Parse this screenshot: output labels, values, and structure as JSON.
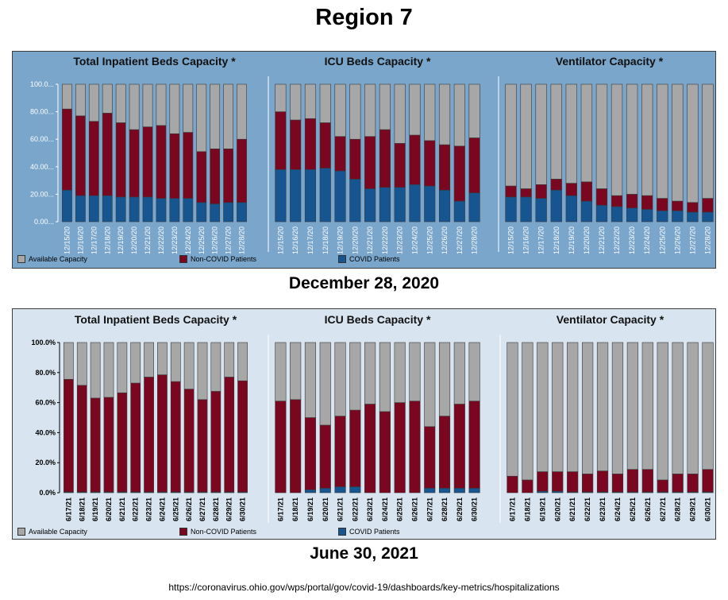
{
  "page": {
    "title": "Region 7",
    "source": "https://coronavirus.ohio.gov/wps/portal/gov/covid-19/dashboards/key-metrics/hospitalizations"
  },
  "legend": {
    "available": "Available Capacity",
    "non_covid": "Non-COVID Patients",
    "covid": "COVID Patients"
  },
  "colors": {
    "available": "#a7a7a7",
    "non_covid": "#7a0620",
    "covid": "#175591",
    "panel_top_bg": "#7aa6cc",
    "panel_bottom_bg": "#d8e4ef"
  },
  "panels": [
    {
      "caption": "December 28, 2020",
      "y_ticks": [
        "100.0...",
        "80.00...",
        "60.00...",
        "40.00...",
        "20.00...",
        "0.00..."
      ],
      "dates": [
        "12/15/20",
        "12/16/20",
        "12/17/20",
        "12/18/20",
        "12/19/20",
        "12/20/20",
        "12/21/20",
        "12/22/20",
        "12/23/20",
        "12/24/20",
        "12/25/20",
        "12/26/20",
        "12/27/20",
        "12/28/20"
      ]
    },
    {
      "caption": "June 30, 2021",
      "y_ticks": [
        "100.0%",
        "80.0%",
        "60.0%",
        "40.0%",
        "20.0%",
        "0.0%"
      ],
      "dates": [
        "6/17/21",
        "6/18/21",
        "6/19/21",
        "6/20/21",
        "6/21/21",
        "6/22/21",
        "6/23/21",
        "6/24/21",
        "6/25/21",
        "6/26/21",
        "6/27/21",
        "6/28/21",
        "6/29/21",
        "6/30/21"
      ]
    }
  ],
  "chart_data": [
    {
      "type": "bar",
      "stacked": true,
      "title": "Total Inpatient Beds Capacity *",
      "period": "December 28, 2020",
      "categories": [
        "12/15/20",
        "12/16/20",
        "12/17/20",
        "12/18/20",
        "12/19/20",
        "12/20/20",
        "12/21/20",
        "12/22/20",
        "12/23/20",
        "12/24/20",
        "12/25/20",
        "12/26/20",
        "12/27/20",
        "12/28/20"
      ],
      "ylim": [
        0,
        100
      ],
      "series": [
        {
          "name": "COVID Patients",
          "values": [
            23,
            19,
            19,
            19,
            18,
            18,
            18,
            17,
            17,
            17,
            14,
            13,
            14,
            14
          ]
        },
        {
          "name": "Non-COVID Patients",
          "values": [
            59,
            58,
            54,
            60,
            54,
            49,
            51,
            53,
            47,
            48,
            37,
            40,
            39,
            46
          ]
        },
        {
          "name": "Available Capacity",
          "values": [
            18,
            23,
            27,
            21,
            28,
            33,
            31,
            30,
            36,
            35,
            49,
            47,
            47,
            40
          ]
        }
      ]
    },
    {
      "type": "bar",
      "stacked": true,
      "title": "ICU Beds Capacity *",
      "period": "December 28, 2020",
      "categories": [
        "12/15/20",
        "12/16/20",
        "12/17/20",
        "12/18/20",
        "12/19/20",
        "12/20/20",
        "12/21/20",
        "12/22/20",
        "12/23/20",
        "12/24/20",
        "12/25/20",
        "12/26/20",
        "12/27/20",
        "12/28/20"
      ],
      "ylim": [
        0,
        100
      ],
      "series": [
        {
          "name": "COVID Patients",
          "values": [
            38,
            38,
            38,
            39,
            37,
            31,
            24,
            25,
            25,
            27,
            26,
            23,
            15,
            21
          ]
        },
        {
          "name": "Non-COVID Patients",
          "values": [
            42,
            36,
            37,
            33,
            25,
            29,
            38,
            42,
            32,
            36,
            33,
            33,
            40,
            40
          ]
        },
        {
          "name": "Available Capacity",
          "values": [
            20,
            26,
            25,
            28,
            38,
            40,
            38,
            33,
            43,
            37,
            41,
            44,
            45,
            39
          ]
        }
      ]
    },
    {
      "type": "bar",
      "stacked": true,
      "title": "Ventilator Capacity *",
      "period": "December 28, 2020",
      "categories": [
        "12/15/20",
        "12/16/20",
        "12/17/20",
        "12/18/20",
        "12/19/20",
        "12/20/20",
        "12/21/20",
        "12/22/20",
        "12/23/20",
        "12/24/20",
        "12/25/20",
        "12/26/20",
        "12/27/20",
        "12/28/20"
      ],
      "ylim": [
        0,
        100
      ],
      "series": [
        {
          "name": "COVID Patients",
          "values": [
            18,
            18,
            17,
            23,
            19,
            15,
            12,
            11,
            10,
            9,
            8,
            8,
            7,
            7
          ]
        },
        {
          "name": "Non-COVID Patients",
          "values": [
            8,
            6,
            10,
            8,
            9,
            14,
            12,
            8,
            10,
            10,
            9,
            7,
            7,
            10
          ]
        },
        {
          "name": "Available Capacity",
          "values": [
            74,
            76,
            73,
            69,
            72,
            71,
            76,
            81,
            80,
            81,
            83,
            85,
            86,
            83
          ]
        }
      ]
    },
    {
      "type": "bar",
      "stacked": true,
      "title": "Total Inpatient Beds Capacity *",
      "period": "June 30, 2021",
      "categories": [
        "6/17/21",
        "6/18/21",
        "6/19/21",
        "6/20/21",
        "6/21/21",
        "6/22/21",
        "6/23/21",
        "6/24/21",
        "6/25/21",
        "6/26/21",
        "6/27/21",
        "6/28/21",
        "6/29/21",
        "6/30/21"
      ],
      "ylim": [
        0,
        100
      ],
      "series": [
        {
          "name": "COVID Patients",
          "values": [
            0.5,
            0.5,
            0.5,
            0.5,
            0.5,
            0.5,
            0.5,
            0.5,
            0.5,
            0.5,
            0.5,
            0.5,
            0.5,
            0.5
          ]
        },
        {
          "name": "Non-COVID Patients",
          "values": [
            75,
            71,
            62.5,
            63,
            66,
            72.5,
            76.5,
            78,
            73.5,
            68.5,
            61.5,
            67,
            76.5,
            74
          ]
        },
        {
          "name": "Available Capacity",
          "values": [
            24.5,
            28.5,
            37,
            36.5,
            33.5,
            27,
            23,
            21.5,
            26,
            31,
            38,
            32.5,
            23,
            25.5
          ]
        }
      ]
    },
    {
      "type": "bar",
      "stacked": true,
      "title": "ICU Beds Capacity *",
      "period": "June 30, 2021",
      "categories": [
        "6/17/21",
        "6/18/21",
        "6/19/21",
        "6/20/21",
        "6/21/21",
        "6/22/21",
        "6/23/21",
        "6/24/21",
        "6/25/21",
        "6/26/21",
        "6/27/21",
        "6/28/21",
        "6/29/21",
        "6/30/21"
      ],
      "ylim": [
        0,
        100
      ],
      "series": [
        {
          "name": "COVID Patients",
          "values": [
            0,
            0,
            2,
            3,
            4,
            4,
            0,
            0,
            0,
            0,
            3,
            3,
            3,
            3
          ]
        },
        {
          "name": "Non-COVID Patients",
          "values": [
            61,
            62,
            48,
            42,
            47,
            51,
            59,
            54,
            60,
            61,
            41,
            48,
            56,
            58
          ]
        },
        {
          "name": "Available Capacity",
          "values": [
            39,
            38,
            50,
            55,
            49,
            45,
            41,
            46,
            40,
            39,
            56,
            49,
            41,
            39
          ]
        }
      ]
    },
    {
      "type": "bar",
      "stacked": true,
      "title": "Ventilator Capacity *",
      "period": "June 30, 2021",
      "categories": [
        "6/17/21",
        "6/18/21",
        "6/19/21",
        "6/20/21",
        "6/21/21",
        "6/22/21",
        "6/23/21",
        "6/24/21",
        "6/25/21",
        "6/26/21",
        "6/27/21",
        "6/28/21",
        "6/29/21",
        "6/30/21"
      ],
      "ylim": [
        0,
        100
      ],
      "series": [
        {
          "name": "COVID Patients",
          "values": [
            0,
            0,
            1,
            1,
            0.5,
            0.5,
            0.5,
            0.5,
            0.5,
            0.5,
            0.5,
            0.5,
            0.5,
            0.5
          ]
        },
        {
          "name": "Non-COVID Patients",
          "values": [
            11,
            8.5,
            13,
            13,
            13.5,
            12,
            14,
            12,
            15,
            15,
            8,
            12,
            12,
            15
          ]
        },
        {
          "name": "Available Capacity",
          "values": [
            89,
            91.5,
            86,
            86,
            86,
            87.5,
            85.5,
            87.5,
            84.5,
            84.5,
            91.5,
            87.5,
            87.5,
            84.5
          ]
        }
      ]
    }
  ]
}
